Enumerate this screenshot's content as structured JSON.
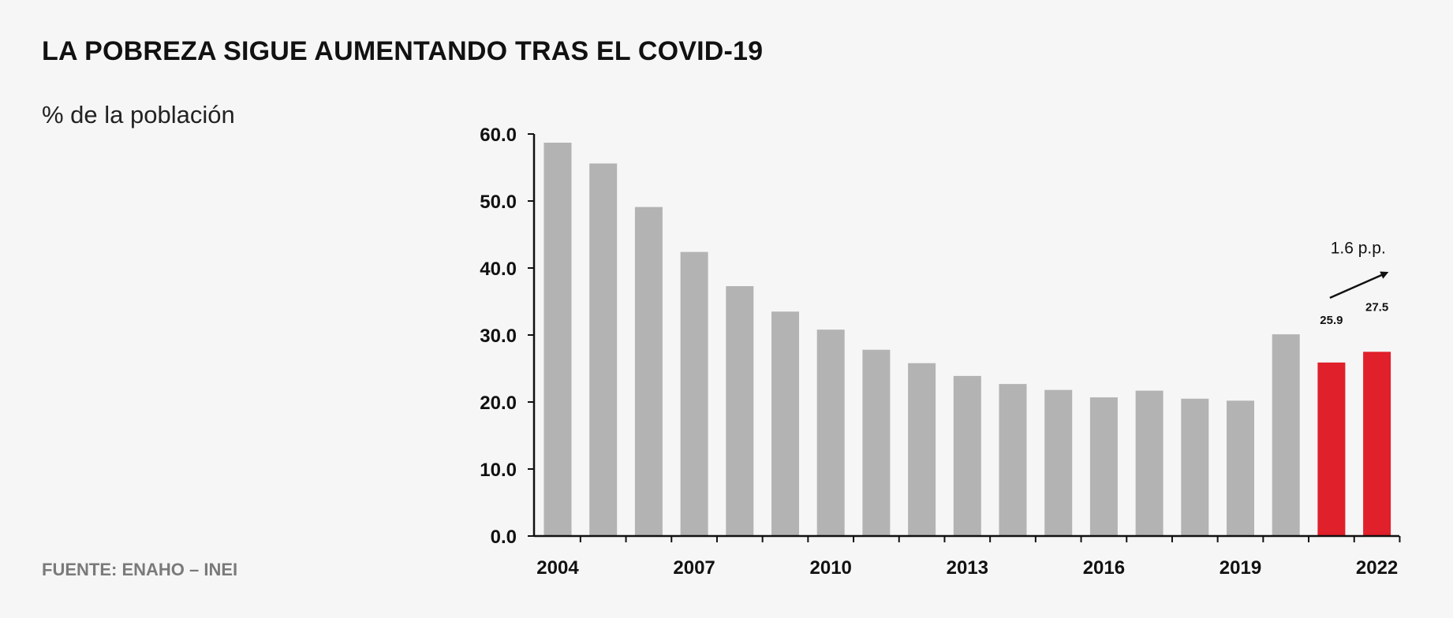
{
  "title": "LA POBREZA SIGUE AUMENTANDO TRAS EL COVID-19",
  "subtitle": "% de la población",
  "source": "FUENTE: ENAHO – INEI",
  "colors": {
    "bar": "#b3b3b3",
    "highlight": "#e0202a",
    "axis": "#111111",
    "background": "#f6f6f6"
  },
  "chart_data": {
    "type": "bar",
    "title": "LA POBREZA SIGUE AUMENTANDO TRAS EL COVID-19",
    "ylabel": "% de la población",
    "xlabel": "",
    "ylim": [
      0,
      60
    ],
    "yticks": [
      0,
      10,
      20,
      30,
      40,
      50,
      60
    ],
    "ytick_labels": [
      "0.0",
      "10.0",
      "20.0",
      "30.0",
      "40.0",
      "50.0",
      "60.0"
    ],
    "categories": [
      "2004",
      "2005",
      "2006",
      "2007",
      "2008",
      "2009",
      "2010",
      "2011",
      "2012",
      "2013",
      "2014",
      "2015",
      "2016",
      "2017",
      "2018",
      "2019",
      "2020",
      "2021",
      "2022"
    ],
    "xtick_labels": [
      "2004",
      "2007",
      "2010",
      "2013",
      "2016",
      "2019",
      "2022"
    ],
    "values": [
      58.7,
      55.6,
      49.1,
      42.4,
      37.3,
      33.5,
      30.8,
      27.8,
      25.8,
      23.9,
      22.7,
      21.8,
      20.7,
      21.7,
      20.5,
      20.2,
      30.1,
      25.9,
      27.5
    ],
    "highlighted": [
      "2021",
      "2022"
    ],
    "data_labels": [
      {
        "category": "2021",
        "text": "25.9"
      },
      {
        "category": "2022",
        "text": "27.5"
      }
    ],
    "annotation": {
      "text": "1.6 p.p.",
      "from": "2021",
      "to": "2022"
    },
    "grid": false,
    "legend": "none"
  }
}
